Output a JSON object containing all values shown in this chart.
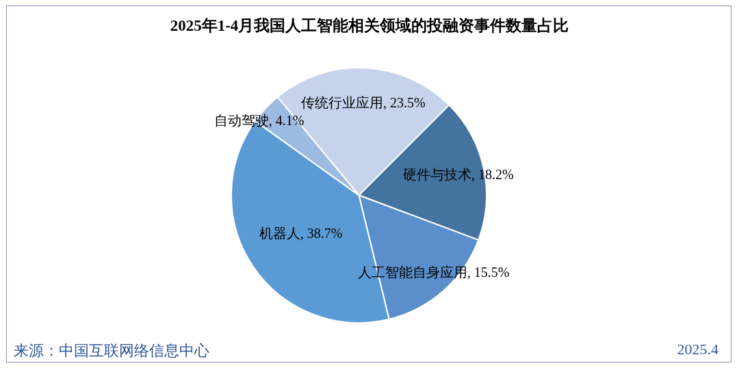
{
  "chart_data": {
    "type": "pie",
    "title": "2025年1-4月我国人工智能相关领域的投融资事件数量占比",
    "categories": [
      "传统行业应用",
      "硬件与技术",
      "人工智能自身应用",
      "机器人",
      "自动驾驶"
    ],
    "values": [
      23.5,
      18.2,
      15.5,
      38.7,
      4.1
    ],
    "value_labels": [
      "23.5%",
      "18.2%",
      "15.5%",
      "38.7%",
      "4.1%"
    ],
    "colors": [
      "#c5d4ec",
      "#44739f",
      "#5a8fcb",
      "#5b9bd5",
      "#9dbae0"
    ],
    "annotations": [
      "来源：中国互联网络信息中心",
      "2025.4"
    ]
  }
}
